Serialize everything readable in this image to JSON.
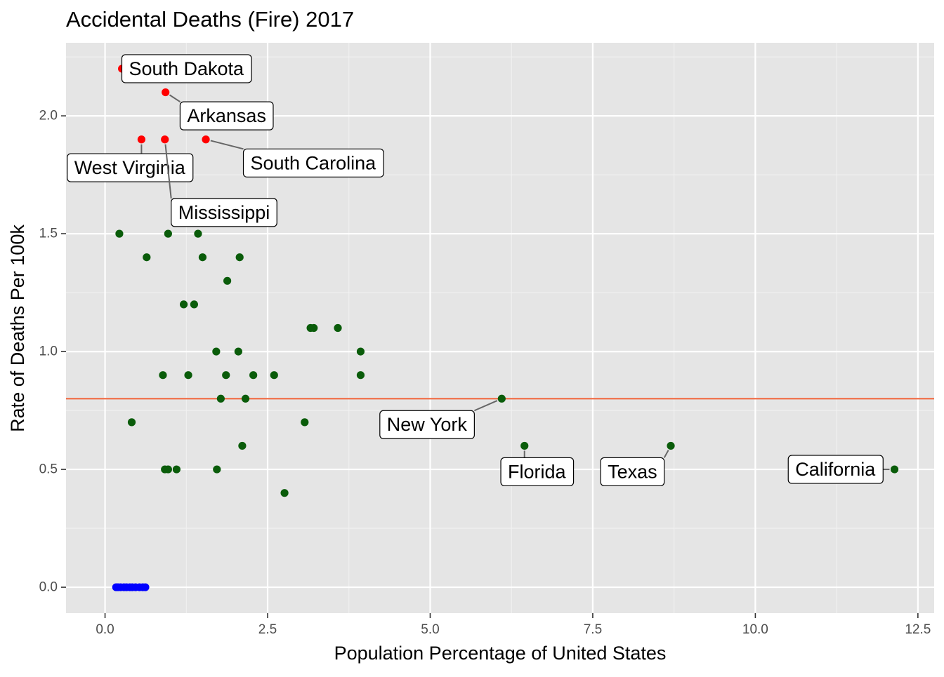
{
  "chart_data": {
    "type": "scatter",
    "title": "Accidental Deaths (Fire) 2017",
    "xlabel": "Population Percentage of United States",
    "ylabel": "Rate of Deaths Per 100k",
    "xlim": [
      -0.6,
      12.75
    ],
    "ylim": [
      -0.11,
      2.31
    ],
    "xticks": [
      0.0,
      2.5,
      5.0,
      7.5,
      10.0,
      12.5
    ],
    "xtick_labels": [
      "0.0",
      "2.5",
      "5.0",
      "7.5",
      "10.0",
      "12.5"
    ],
    "yticks": [
      0.0,
      0.5,
      1.0,
      1.5,
      2.0
    ],
    "ytick_labels": [
      "0.0",
      "0.5",
      "1.0",
      "1.5",
      "2.0"
    ],
    "grid": true,
    "background_color": "#e5e5e5",
    "reference_line": {
      "y": 0.8,
      "color": "#f0704a"
    },
    "group_colors": {
      "high": "#ff0000",
      "mid": "#0a5c0a",
      "zero": "#0000ff"
    },
    "points": [
      {
        "x": 0.26,
        "y": 2.2,
        "group": "high"
      },
      {
        "x": 0.93,
        "y": 2.1,
        "group": "high"
      },
      {
        "x": 0.56,
        "y": 1.9,
        "group": "high"
      },
      {
        "x": 0.92,
        "y": 1.9,
        "group": "high"
      },
      {
        "x": 1.55,
        "y": 1.9,
        "group": "high"
      },
      {
        "x": 0.22,
        "y": 1.5,
        "group": "mid"
      },
      {
        "x": 0.97,
        "y": 1.5,
        "group": "mid"
      },
      {
        "x": 1.43,
        "y": 1.5,
        "group": "mid"
      },
      {
        "x": 0.64,
        "y": 1.4,
        "group": "mid"
      },
      {
        "x": 1.5,
        "y": 1.4,
        "group": "mid"
      },
      {
        "x": 2.07,
        "y": 1.4,
        "group": "mid"
      },
      {
        "x": 1.88,
        "y": 1.3,
        "group": "mid"
      },
      {
        "x": 1.21,
        "y": 1.2,
        "group": "mid"
      },
      {
        "x": 1.37,
        "y": 1.2,
        "group": "mid"
      },
      {
        "x": 3.16,
        "y": 1.1,
        "group": "mid"
      },
      {
        "x": 3.21,
        "y": 1.1,
        "group": "mid"
      },
      {
        "x": 3.58,
        "y": 1.1,
        "group": "mid"
      },
      {
        "x": 1.71,
        "y": 1.0,
        "group": "mid"
      },
      {
        "x": 2.05,
        "y": 1.0,
        "group": "mid"
      },
      {
        "x": 3.93,
        "y": 1.0,
        "group": "mid"
      },
      {
        "x": 0.89,
        "y": 0.9,
        "group": "mid"
      },
      {
        "x": 1.28,
        "y": 0.9,
        "group": "mid"
      },
      {
        "x": 1.86,
        "y": 0.9,
        "group": "mid"
      },
      {
        "x": 2.28,
        "y": 0.9,
        "group": "mid"
      },
      {
        "x": 2.6,
        "y": 0.9,
        "group": "mid"
      },
      {
        "x": 3.93,
        "y": 0.9,
        "group": "mid"
      },
      {
        "x": 1.78,
        "y": 0.8,
        "group": "mid"
      },
      {
        "x": 2.16,
        "y": 0.8,
        "group": "mid"
      },
      {
        "x": 6.1,
        "y": 0.8,
        "group": "mid"
      },
      {
        "x": 0.41,
        "y": 0.7,
        "group": "mid"
      },
      {
        "x": 3.07,
        "y": 0.7,
        "group": "mid"
      },
      {
        "x": 2.11,
        "y": 0.6,
        "group": "mid"
      },
      {
        "x": 6.45,
        "y": 0.6,
        "group": "mid"
      },
      {
        "x": 8.7,
        "y": 0.6,
        "group": "mid"
      },
      {
        "x": 0.92,
        "y": 0.5,
        "group": "mid"
      },
      {
        "x": 0.97,
        "y": 0.5,
        "group": "mid"
      },
      {
        "x": 1.1,
        "y": 0.5,
        "group": "mid"
      },
      {
        "x": 1.72,
        "y": 0.5,
        "group": "mid"
      },
      {
        "x": 12.14,
        "y": 0.5,
        "group": "mid"
      },
      {
        "x": 2.76,
        "y": 0.4,
        "group": "mid"
      },
      {
        "x": 0.17,
        "y": 0.0,
        "group": "zero"
      },
      {
        "x": 0.2,
        "y": 0.0,
        "group": "zero"
      },
      {
        "x": 0.24,
        "y": 0.0,
        "group": "zero"
      },
      {
        "x": 0.29,
        "y": 0.0,
        "group": "zero"
      },
      {
        "x": 0.33,
        "y": 0.0,
        "group": "zero"
      },
      {
        "x": 0.38,
        "y": 0.0,
        "group": "zero"
      },
      {
        "x": 0.42,
        "y": 0.0,
        "group": "zero"
      },
      {
        "x": 0.47,
        "y": 0.0,
        "group": "zero"
      },
      {
        "x": 0.53,
        "y": 0.0,
        "group": "zero"
      },
      {
        "x": 0.58,
        "y": 0.0,
        "group": "zero"
      },
      {
        "x": 0.62,
        "y": 0.0,
        "group": "zero"
      }
    ],
    "annotations": [
      {
        "text": "South Dakota",
        "point_x": 0.26,
        "point_y": 2.2,
        "label_x": 1.25,
        "label_y": 2.2
      },
      {
        "text": "Arkansas",
        "point_x": 0.93,
        "point_y": 2.1,
        "label_x": 1.87,
        "label_y": 2.0
      },
      {
        "text": "South Carolina",
        "point_x": 1.55,
        "point_y": 1.9,
        "label_x": 3.2,
        "label_y": 1.8
      },
      {
        "text": "West Virginia",
        "point_x": 0.56,
        "point_y": 1.9,
        "label_x": 0.38,
        "label_y": 1.78
      },
      {
        "text": "Mississippi",
        "point_x": 0.92,
        "point_y": 1.9,
        "label_x": 1.83,
        "label_y": 1.59
      },
      {
        "text": "New York",
        "point_x": 6.1,
        "point_y": 0.8,
        "label_x": 4.95,
        "label_y": 0.69
      },
      {
        "text": "Florida",
        "point_x": 6.45,
        "point_y": 0.6,
        "label_x": 6.64,
        "label_y": 0.49
      },
      {
        "text": "Texas",
        "point_x": 8.7,
        "point_y": 0.6,
        "label_x": 8.11,
        "label_y": 0.49
      },
      {
        "text": "California",
        "point_x": 12.14,
        "point_y": 0.5,
        "label_x": 11.23,
        "label_y": 0.5
      }
    ]
  }
}
